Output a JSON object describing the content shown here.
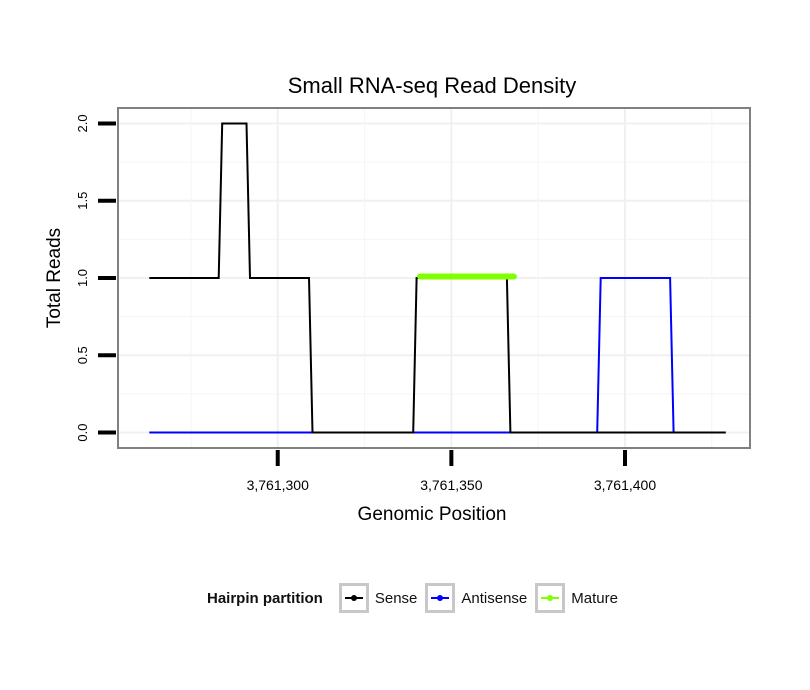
{
  "chart_data": {
    "type": "line",
    "title": "Small RNA-seq Read Density",
    "xlabel": "Genomic Position",
    "ylabel": "Total Reads",
    "xlim": [
      3761254,
      3761436
    ],
    "ylim": [
      -0.1,
      2.1
    ],
    "x_ticks": [
      3761300,
      3761350,
      3761400
    ],
    "x_tick_labels": [
      "3,761,300",
      "3,761,350",
      "3,761,400"
    ],
    "y_ticks": [
      0,
      0.5,
      1,
      1.5,
      2
    ],
    "y_tick_labels": [
      "0.0",
      "0.5",
      "1.0",
      "1.5",
      "2.0"
    ],
    "grid": true,
    "legend_position": "bottom",
    "legend_title": "Hairpin partition",
    "series": [
      {
        "name": "Sense",
        "color": "#000000",
        "x": [
          3761263,
          3761283,
          3761284,
          3761291,
          3761292,
          3761309,
          3761310,
          3761339,
          3761340,
          3761366,
          3761367,
          3761429
        ],
        "values": [
          1,
          1,
          2,
          2,
          1,
          1,
          0,
          0,
          1,
          1,
          0,
          0
        ]
      },
      {
        "name": "Antisense",
        "color": "#0000ff",
        "x": [
          3761263,
          3761392,
          3761393,
          3761413,
          3761414,
          3761429
        ],
        "values": [
          0,
          0,
          1,
          1,
          0,
          0
        ]
      },
      {
        "name": "Mature",
        "color": "#7fff00",
        "x": [
          3761341,
          3761368
        ],
        "values": [
          1.01,
          1.01
        ]
      }
    ]
  }
}
